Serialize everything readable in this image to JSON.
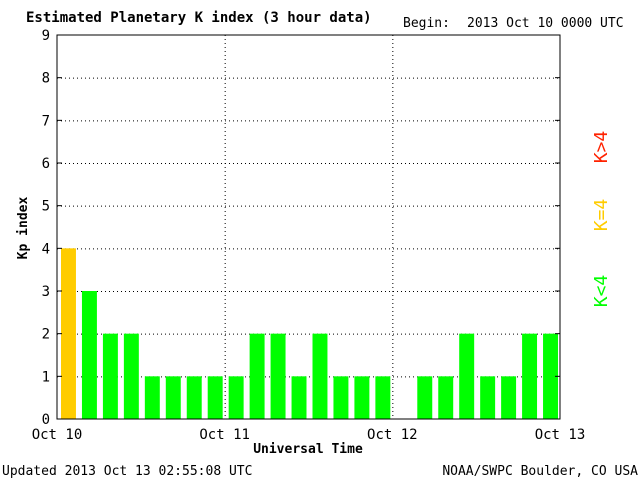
{
  "header": {
    "title": "Estimated Planetary K index (3 hour data)",
    "begin_label": "Begin:",
    "begin_value": "2013 Oct 10 0000 UTC"
  },
  "footer": {
    "updated": "Updated 2013 Oct 13 02:55:08 UTC",
    "source": "NOAA/SWPC Boulder, CO USA"
  },
  "legend": {
    "below": "K<4",
    "equal": "K=4",
    "above": "K>4"
  },
  "colors": {
    "below": "#00ff00",
    "equal": "#ffcc00",
    "above": "#ff2200"
  },
  "chart_data": {
    "type": "bar",
    "title": "Estimated Planetary K index (3 hour data)",
    "xlabel": "Universal Time",
    "ylabel": "Kp index",
    "ylim": [
      0,
      9
    ],
    "yticks": [
      0,
      1,
      2,
      3,
      4,
      5,
      6,
      7,
      8,
      9
    ],
    "xticks": [
      "Oct 10",
      "Oct 11",
      "Oct 12",
      "Oct 13"
    ],
    "interval_hours": 3,
    "grid": true,
    "values": [
      4,
      3,
      2,
      2,
      1,
      1,
      1,
      1,
      1,
      2,
      2,
      1,
      2,
      1,
      1,
      1,
      null,
      1,
      1,
      2,
      1,
      1,
      2,
      2
    ]
  }
}
